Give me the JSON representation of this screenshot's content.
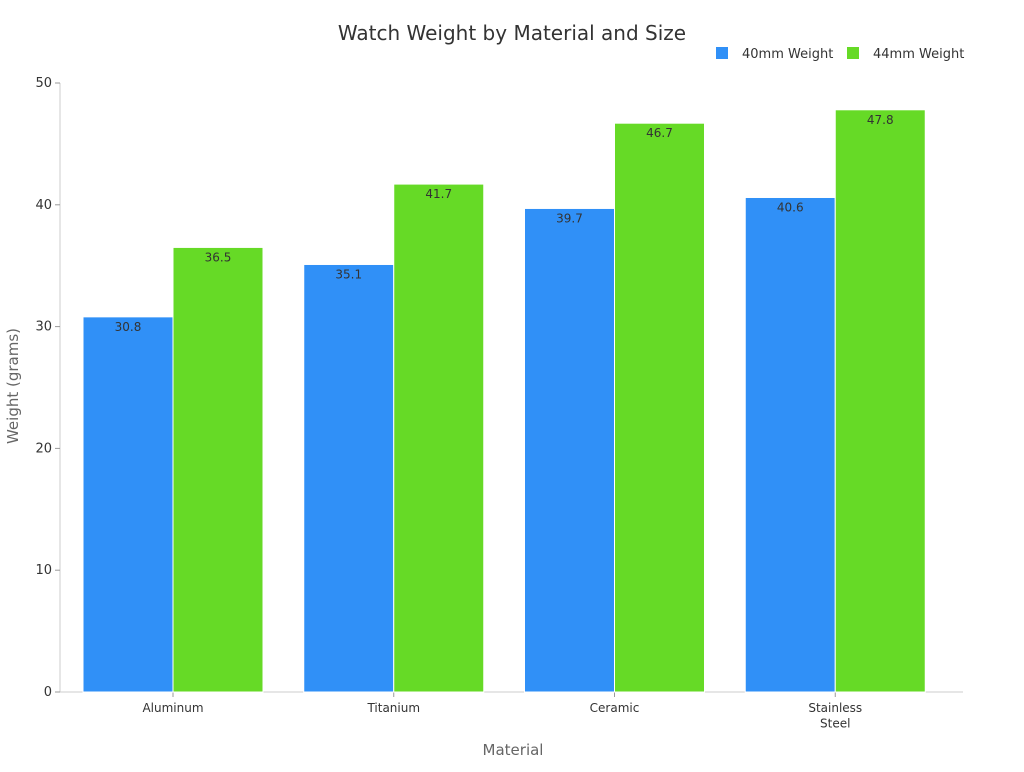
{
  "chart_data": {
    "type": "bar",
    "title": "Watch Weight by Material and Size",
    "xlabel": "Material",
    "ylabel": "Weight (grams)",
    "categories": [
      [
        "Aluminum"
      ],
      [
        "Titanium"
      ],
      [
        "Ceramic"
      ],
      [
        "Stainless",
        "Steel"
      ]
    ],
    "series": [
      {
        "name": "40mm Weight",
        "values": [
          30.8,
          35.1,
          39.7,
          40.6
        ],
        "color": "#3090f7"
      },
      {
        "name": "44mm Weight",
        "values": [
          36.5,
          41.7,
          46.7,
          47.8
        ],
        "color": "#66da26"
      }
    ],
    "ylim": [
      0,
      50
    ],
    "yticks": [
      0,
      10,
      20,
      30,
      40,
      50
    ],
    "grid": false,
    "legend": "top-right"
  }
}
